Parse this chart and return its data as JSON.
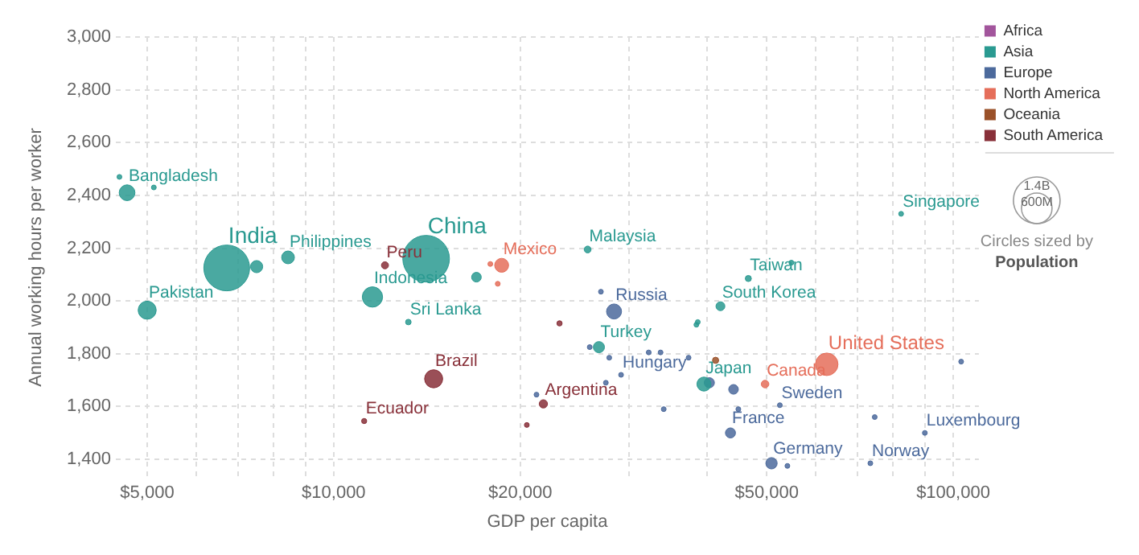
{
  "chart_data": {
    "type": "bubble",
    "xlabel": "GDP per capita",
    "ylabel": "Annual working hours per worker",
    "log": "x",
    "grid": true,
    "marker": "circle",
    "legend": "top right",
    "xlim": [
      4450,
      110000
    ],
    "ylim": [
      1330,
      3000
    ],
    "xticks": [
      {
        "value": 5000,
        "label": "$5,000"
      },
      {
        "value": 6000,
        "label": null
      },
      {
        "value": 7000,
        "label": null
      },
      {
        "value": 8000,
        "label": null
      },
      {
        "value": 9000,
        "label": null
      },
      {
        "value": 10000,
        "label": "$10,000"
      },
      {
        "value": 20000,
        "label": "$20,000"
      },
      {
        "value": 30000,
        "label": null
      },
      {
        "value": 40000,
        "label": null
      },
      {
        "value": 50000,
        "label": "$50,000"
      },
      {
        "value": 60000,
        "label": null
      },
      {
        "value": 70000,
        "label": null
      },
      {
        "value": 80000,
        "label": null
      },
      {
        "value": 90000,
        "label": null
      },
      {
        "value": 100000,
        "label": "$100,000"
      }
    ],
    "yticks": [
      {
        "value": 1400,
        "label": "1,400"
      },
      {
        "value": 1600,
        "label": "1,600"
      },
      {
        "value": 1800,
        "label": "1,800"
      },
      {
        "value": 2000,
        "label": "2,000"
      },
      {
        "value": 2200,
        "label": "2,200"
      },
      {
        "value": 2400,
        "label": "2,400"
      },
      {
        "value": 2600,
        "label": "2,600"
      },
      {
        "value": 2800,
        "label": "2,800"
      },
      {
        "value": 3000,
        "label": "3,000"
      }
    ],
    "size_legend": [
      {
        "value": 1400000000,
        "label": "1.4B"
      },
      {
        "value": 600000000,
        "label": "600M"
      }
    ],
    "series": [
      {
        "name": "Africa",
        "color": "#a2559c"
      },
      {
        "name": "Asia",
        "color": "#2a9a91",
        "x": [
          4640,
          4510,
          5125,
          6720,
          7510,
          8440,
          5000,
          14100,
          11550,
          17000,
          13200,
          25700,
          26800,
          38500,
          38700,
          39600,
          42100,
          46700,
          54800,
          82400
        ],
        "values": [
          2410,
          2470,
          2430,
          2125,
          2130,
          2165,
          1965,
          2160,
          2015,
          2090,
          1920,
          2195,
          1825,
          1910,
          1920,
          1685,
          1980,
          2085,
          2145,
          2330
        ],
        "sizes": [
          160000000,
          15000000,
          15000000,
          1350000000,
          95000000,
          105000000,
          210000000,
          1400000000,
          265000000,
          60000000,
          20000000,
          30000000,
          80000000,
          15000000,
          15000000,
          127000000,
          51000000,
          24000000,
          15000000,
          15000000
        ]
      },
      {
        "name": "Europe",
        "color": "#4c6a9c",
        "x": [
          21250,
          27000,
          28350,
          25900,
          27850,
          29100,
          27500,
          32250,
          33700,
          34100,
          37400,
          40400,
          44200,
          45000,
          43700,
          52500,
          50900,
          54000,
          74700,
          90000,
          73500,
          103000
        ],
        "values": [
          1645,
          2035,
          1960,
          1825,
          1785,
          1720,
          1690,
          1805,
          1805,
          1590,
          1785,
          1690,
          1665,
          1590,
          1500,
          1605,
          1385,
          1375,
          1560,
          1500,
          1385,
          1770
        ],
        "sizes": [
          15000000,
          15000000,
          145000000,
          15000000,
          15000000,
          15000000,
          15000000,
          15000000,
          15000000,
          15000000,
          15000000,
          66000000,
          60000000,
          15000000,
          65000000,
          15000000,
          83000000,
          15000000,
          15000000,
          15000000,
          15000000,
          15000000
        ]
      },
      {
        "name": "North America",
        "color": "#e56e5a",
        "x": [
          18670,
          17900,
          18400,
          49700,
          62500
        ],
        "values": [
          2135,
          2140,
          2065,
          1685,
          1760
        ],
        "sizes": [
          125000000,
          15000000,
          15000000,
          37000000,
          327000000
        ]
      },
      {
        "name": "Oceania",
        "color": "#9a5129",
        "x": [
          41350
        ],
        "values": [
          1775
        ],
        "sizes": [
          25000000
        ]
      },
      {
        "name": "South America",
        "color": "#883039",
        "x": [
          12100,
          14500,
          11200,
          20500,
          23150,
          21800
        ],
        "values": [
          2135,
          1705,
          1545,
          1530,
          1915,
          1610
        ],
        "sizes": [
          32000000,
          210000000,
          17000000,
          15000000,
          18000000,
          44000000
        ]
      }
    ],
    "annotations": [
      {
        "text": "Bangladesh",
        "x": 4640,
        "y": 2410
      },
      {
        "text": "India",
        "x": 6720,
        "y": 2125
      },
      {
        "text": "Philippines",
        "x": 8440,
        "y": 2165
      },
      {
        "text": "Pakistan",
        "x": 5000,
        "y": 1965
      },
      {
        "text": "China",
        "x": 14100,
        "y": 2160
      },
      {
        "text": "Peru",
        "x": 12100,
        "y": 2135
      },
      {
        "text": "Mexico",
        "x": 18670,
        "y": 2135
      },
      {
        "text": "Malaysia",
        "x": 25700,
        "y": 2195
      },
      {
        "text": "Indonesia",
        "x": 11550,
        "y": 2015
      },
      {
        "text": "Sri Lanka",
        "x": 13200,
        "y": 1920
      },
      {
        "text": "Brazil",
        "x": 14500,
        "y": 1705
      },
      {
        "text": "Ecuador",
        "x": 11200,
        "y": 1545
      },
      {
        "text": "Argentina",
        "x": 21800,
        "y": 1610
      },
      {
        "text": "Russia",
        "x": 28350,
        "y": 1960
      },
      {
        "text": "Turkey",
        "x": 26800,
        "y": 1825
      },
      {
        "text": "Hungary",
        "x": 29100,
        "y": 1720
      },
      {
        "text": "Japan",
        "x": 39600,
        "y": 1685
      },
      {
        "text": "Canada",
        "x": 49700,
        "y": 1685
      },
      {
        "text": "United States",
        "x": 62500,
        "y": 1760
      },
      {
        "text": "Sweden",
        "x": 52500,
        "y": 1605
      },
      {
        "text": "France",
        "x": 43700,
        "y": 1500
      },
      {
        "text": "Germany",
        "x": 50900,
        "y": 1385
      },
      {
        "text": "Luxembourg",
        "x": 90000,
        "y": 1500
      },
      {
        "text": "Norway",
        "x": 73500,
        "y": 1385
      },
      {
        "text": "South Korea",
        "x": 42100,
        "y": 1980
      },
      {
        "text": "Taiwan",
        "x": 46700,
        "y": 2085
      },
      {
        "text": "Singapore",
        "x": 82400,
        "y": 2330
      },
      "Circles sized by",
      "Population"
    ]
  }
}
